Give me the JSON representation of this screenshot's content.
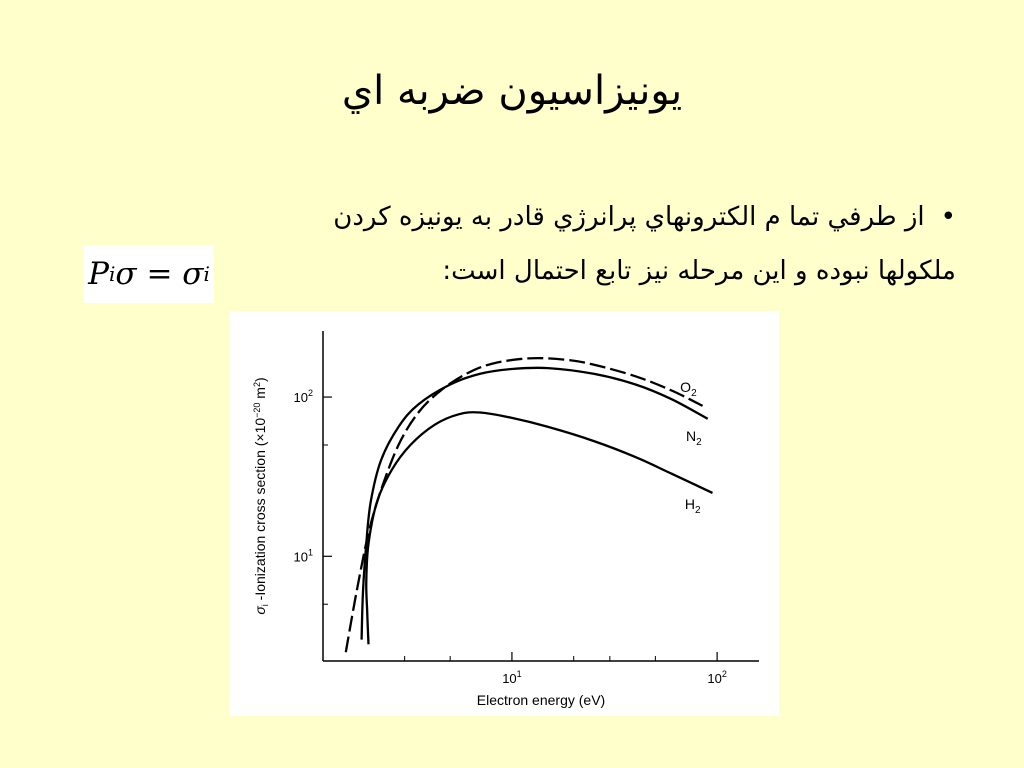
{
  "slide": {
    "title": "يونيزاسيون ضربه اي",
    "bullet_symbol": "•",
    "bullet_line1": "از طرفي تما م الكترونهاي پرانرژي قادر به يونيزه كردن",
    "bullet_line2": "ملكولها نبوده و اين مرحله نيز تابع احتمال است:",
    "formula": {
      "lhs_P": "P",
      "lhs_sub": "i",
      "sigma": "σ",
      "eq": "=",
      "rhs_sigma": "σ",
      "rhs_sub": "i"
    }
  },
  "chart_data": {
    "type": "line",
    "xlabel": "Electron energy (eV)",
    "ylabel_sigma": "σ",
    "ylabel_sub": "i",
    "ylabel_rest": " -Ionization cross section (×10",
    "ylabel_exp": "−20",
    "ylabel_unit": " m",
    "ylabel_unit_exp": "2",
    "ylabel_close": ")",
    "x_scale": "log",
    "y_scale": "log",
    "xlim": [
      1.2,
      160
    ],
    "ylim": [
      2.2,
      260
    ],
    "x_ticks": [
      {
        "value": 10,
        "base": "10",
        "exp": "1"
      },
      {
        "value": 100,
        "base": "10",
        "exp": "2"
      }
    ],
    "x_minor_ticks": [
      3,
      5,
      20,
      30,
      50
    ],
    "y_ticks": [
      {
        "value": 10,
        "base": "10",
        "exp": "1"
      },
      {
        "value": 100,
        "base": "10",
        "exp": "2"
      }
    ],
    "y_minor_ticks": [
      5,
      50
    ],
    "grid": false,
    "series": [
      {
        "name": "O",
        "name_sub": "2",
        "dash": true,
        "points": [
          [
            1.55,
            2.5
          ],
          [
            1.75,
            6
          ],
          [
            2.0,
            14
          ],
          [
            2.3,
            26
          ],
          [
            2.8,
            50
          ],
          [
            3.5,
            80
          ],
          [
            4.5,
            110
          ],
          [
            6,
            140
          ],
          [
            8,
            162
          ],
          [
            12,
            175
          ],
          [
            18,
            172
          ],
          [
            25,
            160
          ],
          [
            40,
            135
          ],
          [
            60,
            110
          ],
          [
            85,
            88
          ]
        ]
      },
      {
        "name": "N",
        "name_sub": "2",
        "dash": false,
        "points": [
          [
            1.85,
            3.0
          ],
          [
            1.88,
            6
          ],
          [
            1.95,
            12
          ],
          [
            2.05,
            22
          ],
          [
            2.3,
            40
          ],
          [
            2.8,
            65
          ],
          [
            3.5,
            90
          ],
          [
            5,
            120
          ],
          [
            7,
            140
          ],
          [
            10,
            150
          ],
          [
            15,
            152
          ],
          [
            25,
            140
          ],
          [
            40,
            120
          ],
          [
            60,
            97
          ],
          [
            90,
            73
          ]
        ]
      },
      {
        "name": "H",
        "name_sub": "2",
        "dash": false,
        "points": [
          [
            2.0,
            2.8
          ],
          [
            1.97,
            4.5
          ],
          [
            1.95,
            7
          ],
          [
            2.0,
            12
          ],
          [
            2.2,
            22
          ],
          [
            2.6,
            35
          ],
          [
            3.2,
            50
          ],
          [
            4.2,
            67
          ],
          [
            5.5,
            78
          ],
          [
            7,
            80
          ],
          [
            10,
            74
          ],
          [
            15,
            65
          ],
          [
            25,
            53
          ],
          [
            40,
            42
          ],
          [
            60,
            33
          ],
          [
            95,
            25
          ]
        ]
      }
    ]
  }
}
